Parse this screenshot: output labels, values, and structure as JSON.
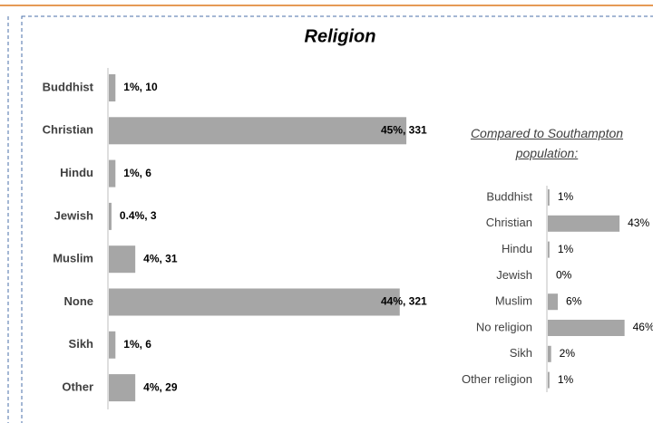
{
  "chart_data": [
    {
      "type": "bar",
      "orientation": "horizontal",
      "title": "Religion",
      "categories": [
        "Buddhist",
        "Christian",
        "Hindu",
        "Jewish",
        "Muslim",
        "None",
        "Sikh",
        "Other"
      ],
      "values": [
        1,
        45,
        1,
        0.4,
        4,
        44,
        1,
        4
      ],
      "value_labels": [
        "1%, 10",
        "45%, 331",
        "1%, 6",
        "0.4%, 3",
        "4%, 31",
        "44%, 321",
        "1%, 6",
        "4%, 29"
      ],
      "color": "#a6a6a6"
    },
    {
      "type": "bar",
      "orientation": "horizontal",
      "title": "Compared to Southampton population:",
      "categories": [
        "Buddhist",
        "Christian",
        "Hindu",
        "Jewish",
        "Muslim",
        "No religion",
        "Sikh",
        "Other religion"
      ],
      "values": [
        1,
        43,
        1,
        0,
        6,
        46,
        2,
        1
      ],
      "value_labels": [
        "1%",
        "43%",
        "1%",
        "0%",
        "6%",
        "46%",
        "2%",
        "1%"
      ],
      "color": "#a6a6a6"
    }
  ]
}
